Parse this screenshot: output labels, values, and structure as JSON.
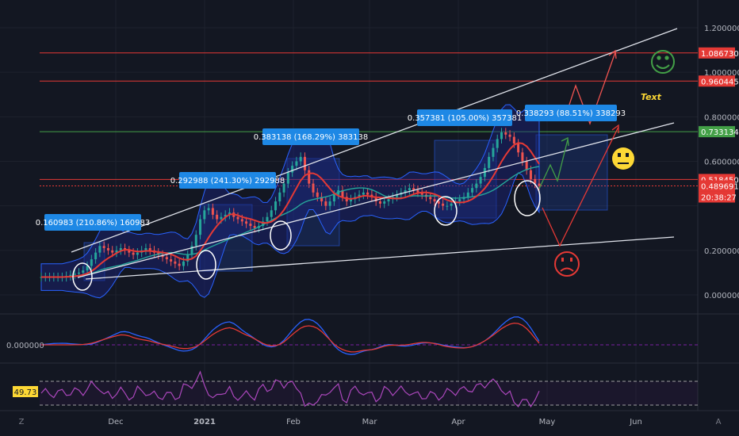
{
  "chart_data": {
    "type": "line",
    "price_axis": {
      "ticks": [
        "1.200000",
        "1.000000",
        "0.800000",
        "0.600000",
        "0.200000",
        "0.000000"
      ],
      "values": [
        1.2,
        1.0,
        0.8,
        0.6,
        0.2,
        0.0
      ],
      "ylim": [
        0.0,
        1.2
      ]
    },
    "time_axis": {
      "labels": [
        "Dec",
        "2021",
        "Feb",
        "Mar",
        "Apr",
        "May",
        "Jun"
      ]
    },
    "price_tags": [
      {
        "text": "1.086730",
        "color": "#e53935"
      },
      {
        "text": "0.960445",
        "color": "#e53935"
      },
      {
        "text": "0.733134",
        "color": "#43a047"
      },
      {
        "text": "0.518450",
        "color": "#e53935"
      },
      {
        "text": "0.489691",
        "color": "#e53935"
      },
      {
        "text": "20:38:27",
        "color": "#e53935"
      }
    ],
    "measurements": [
      {
        "text": "0.160983 (210.86%) 160983"
      },
      {
        "text": "0.292988 (241.30%) 292988"
      },
      {
        "text": "0.383138 (168.29%) 383138"
      },
      {
        "text": "0.357381 (105.00%) 357381"
      },
      {
        "text": "0.338293 (88.51%) 338293"
      }
    ],
    "horizontal_levels": [
      {
        "value": 1.08673,
        "color": "#e53935"
      },
      {
        "value": 0.960445,
        "color": "#e53935"
      },
      {
        "value": 0.733134,
        "color": "#43a047"
      },
      {
        "value": 0.51845,
        "color": "#e53935"
      }
    ],
    "text_note": "Text",
    "price_series": [
      0.08,
      0.08,
      0.08,
      0.08,
      0.08,
      0.08,
      0.085,
      0.09,
      0.095,
      0.1,
      0.11,
      0.13,
      0.16,
      0.19,
      0.22,
      0.21,
      0.2,
      0.19,
      0.2,
      0.21,
      0.2,
      0.19,
      0.18,
      0.19,
      0.2,
      0.21,
      0.2,
      0.19,
      0.18,
      0.17,
      0.16,
      0.15,
      0.14,
      0.13,
      0.15,
      0.18,
      0.22,
      0.27,
      0.34,
      0.38,
      0.39,
      0.36,
      0.34,
      0.35,
      0.36,
      0.37,
      0.35,
      0.34,
      0.33,
      0.32,
      0.31,
      0.3,
      0.31,
      0.33,
      0.35,
      0.38,
      0.42,
      0.46,
      0.5,
      0.55,
      0.58,
      0.6,
      0.62,
      0.56,
      0.5,
      0.46,
      0.44,
      0.42,
      0.4,
      0.42,
      0.45,
      0.47,
      0.44,
      0.42,
      0.43,
      0.44,
      0.45,
      0.46,
      0.45,
      0.44,
      0.42,
      0.41,
      0.42,
      0.43,
      0.44,
      0.45,
      0.46,
      0.47,
      0.48,
      0.47,
      0.46,
      0.45,
      0.44,
      0.43,
      0.42,
      0.41,
      0.4,
      0.4,
      0.41,
      0.42,
      0.43,
      0.44,
      0.46,
      0.48,
      0.5,
      0.53,
      0.57,
      0.62,
      0.66,
      0.7,
      0.73,
      0.72,
      0.71,
      0.68,
      0.64,
      0.6,
      0.56,
      0.52,
      0.5,
      0.49
    ],
    "oscillator_label": "0.000000",
    "rsi_value": "49.73"
  },
  "ui": {
    "left_corner": "Z",
    "right_corner": "A"
  }
}
